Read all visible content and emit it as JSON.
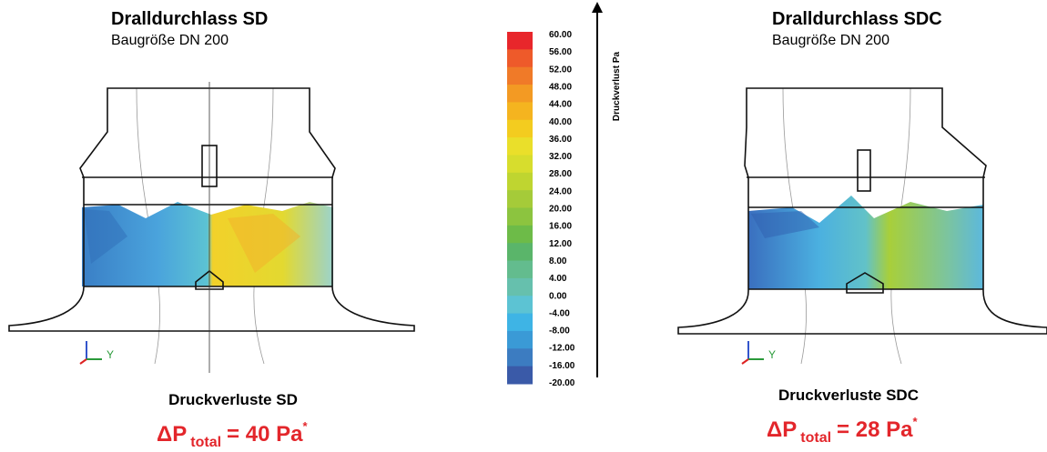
{
  "left": {
    "title": "Dralldurchlass SD",
    "subtitle": "Baugröße DN 200",
    "axis_label": "Y",
    "caption": "Druckverluste SD",
    "result": {
      "symbol": "ΔP",
      "subscript": "total",
      "text": "= 40 Pa",
      "footnote": "*"
    }
  },
  "right": {
    "title": "Dralldurchlass SDC",
    "subtitle": "Baugröße DN 200",
    "axis_label": "Y",
    "caption": "Druckverluste SDC",
    "result": {
      "symbol": "ΔP",
      "subscript": "total",
      "text": "= 28 Pa",
      "footnote": "*"
    }
  },
  "scale": {
    "title": "Druckverlust Pa",
    "labels": [
      "60.00",
      "56.00",
      "52.00",
      "48.00",
      "44.00",
      "40.00",
      "36.00",
      "32.00",
      "28.00",
      "24.00",
      "20.00",
      "16.00",
      "12.00",
      "8.00",
      "4.00",
      "0.00",
      "-4.00",
      "-8.00",
      "-12.00",
      "-16.00",
      "-20.00"
    ]
  }
}
